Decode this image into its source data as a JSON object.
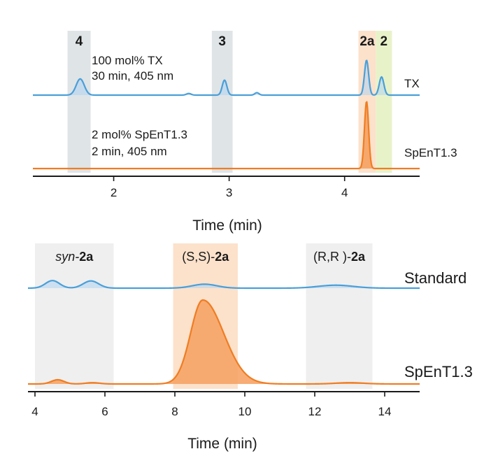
{
  "colors": {
    "blue": "#4a9fd8",
    "blue_fill": "#aed4f2",
    "orange": "#ef7d22",
    "orange_fill": "#f6a466",
    "band_gray": "#d9dfe3",
    "band_light": "#ececec",
    "band_orange": "#fbdcc2",
    "band_green": "#e4f0c0"
  },
  "chart_data": [
    {
      "type": "line",
      "xlabel": "Time (min)",
      "xlim": [
        1.3,
        4.65
      ],
      "xticks": [
        2,
        3,
        4
      ],
      "bands": [
        {
          "label": "4",
          "x0": 1.6,
          "x1": 1.8,
          "color": "gray"
        },
        {
          "label": "3",
          "x0": 2.85,
          "x1": 3.03,
          "color": "gray"
        },
        {
          "label": "2a",
          "x0": 4.12,
          "x1": 4.27,
          "color": "orange"
        },
        {
          "label": "2",
          "x0": 4.27,
          "x1": 4.41,
          "color": "green"
        }
      ],
      "series": [
        {
          "name": "TX",
          "annotation": [
            "100 mol% TX",
            "30 min, 405 nm"
          ],
          "color": "blue",
          "peaks": [
            {
              "x": 1.71,
              "height": 0.4,
              "width": 0.035
            },
            {
              "x": 2.65,
              "height": 0.04,
              "width": 0.02
            },
            {
              "x": 2.96,
              "height": 0.37,
              "width": 0.02
            },
            {
              "x": 3.24,
              "height": 0.06,
              "width": 0.018
            },
            {
              "x": 4.19,
              "height": 0.86,
              "width": 0.018
            },
            {
              "x": 4.32,
              "height": 0.45,
              "width": 0.02
            }
          ]
        },
        {
          "name": "SpEnT1.3",
          "annotation": [
            "2 mol% SpEnT1.3",
            "2 min, 405 nm"
          ],
          "color": "orange",
          "peaks": [
            {
              "x": 4.19,
              "height": 1.0,
              "width": 0.018
            }
          ]
        }
      ]
    },
    {
      "type": "line",
      "xlabel": "Time (min)",
      "xlim": [
        3.8,
        15.0
      ],
      "xticks": [
        4,
        6,
        8,
        10,
        12,
        14
      ],
      "bands": [
        {
          "prefix": "syn-",
          "label": "2a",
          "x0": 4.0,
          "x1": 6.25,
          "color": "light"
        },
        {
          "prefix": "(S,S)-",
          "label": "2a",
          "x0": 7.95,
          "x1": 9.8,
          "color": "orange"
        },
        {
          "prefix": "(R,R )-",
          "label": "2a",
          "x0": 11.75,
          "x1": 13.65,
          "color": "light"
        }
      ],
      "series": [
        {
          "name": "Standard",
          "color": "blue",
          "peaks": [
            {
              "x": 4.5,
              "height": 0.23,
              "width": 0.2
            },
            {
              "x": 5.6,
              "height": 0.22,
              "width": 0.22
            },
            {
              "x": 8.85,
              "height": 0.12,
              "width": 0.35
            },
            {
              "x": 12.6,
              "height": 0.09,
              "width": 0.5
            }
          ]
        },
        {
          "name": "SpEnT1.3",
          "color": "orange",
          "peaks": [
            {
              "x": 4.65,
              "height": 0.05,
              "width": 0.18
            },
            {
              "x": 5.65,
              "height": 0.015,
              "width": 0.2
            },
            {
              "x": 8.8,
              "height": 1.0,
              "width": 0.35,
              "tail": 0.7
            },
            {
              "x": 13.0,
              "height": 0.015,
              "width": 0.4
            }
          ]
        }
      ]
    }
  ]
}
